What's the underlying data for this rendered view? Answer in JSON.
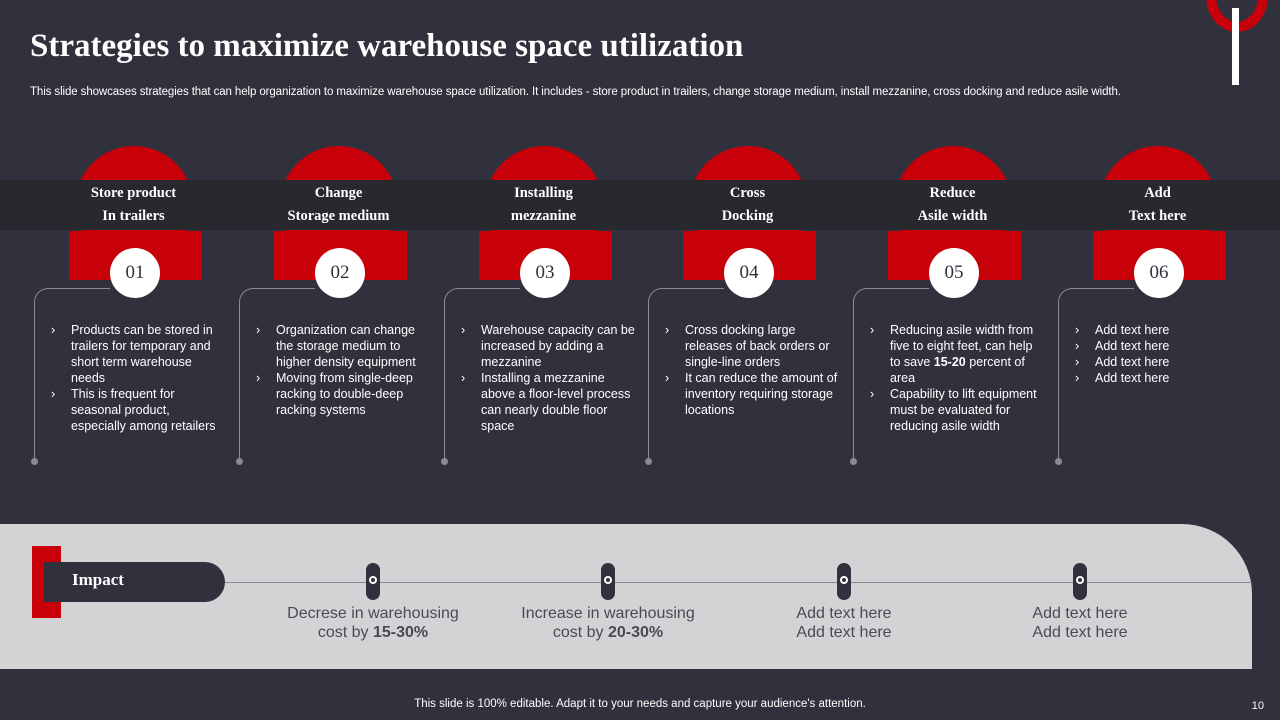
{
  "title": "Strategies to maximize warehouse space utilization",
  "subtitle": "This slide showcases strategies that can help organization to maximize warehouse space utilization. It includes - store product in trailers, change storage medium, install mezzanine, cross docking and reduce asile width.",
  "strategies": [
    {
      "number": "01",
      "heading_line1": "Store product",
      "heading_line2": "In trailers",
      "bullets": [
        "Products can be stored in trailers for temporary and short term warehouse needs",
        "This is frequent for seasonal product, especially among retailers"
      ]
    },
    {
      "number": "02",
      "heading_line1": "Change",
      "heading_line2": "Storage medium",
      "bullets": [
        "Organization can change the storage medium to higher density equipment",
        "Moving from single-deep racking to double-deep racking systems"
      ]
    },
    {
      "number": "03",
      "heading_line1": "Installing",
      "heading_line2": "mezzanine",
      "bullets": [
        "Warehouse capacity can be increased by adding a mezzanine",
        "Installing a mezzanine above a floor-level process can nearly double floor space"
      ]
    },
    {
      "number": "04",
      "heading_line1": "Cross",
      "heading_line2": "Docking",
      "bullets": [
        "Cross docking large releases of back orders or single-line orders",
        "It can reduce the amount of inventory requiring storage locations"
      ]
    },
    {
      "number": "05",
      "heading_line1": "Reduce",
      "heading_line2": "Asile width",
      "bullets": [
        {
          "pre": "Reducing asile width from five to eight feet, can help to save ",
          "bold": "15-20",
          "post": " percent of area"
        },
        "Capability to lift equipment must be evaluated for reducing asile width"
      ]
    },
    {
      "number": "06",
      "heading_line1": "Add",
      "heading_line2": "Text here",
      "bullets": [
        "Add text here",
        "Add text here",
        "Add text here",
        "Add text here"
      ]
    }
  ],
  "impact": {
    "label": "Impact",
    "items": [
      {
        "line1": "Decrese in warehousing",
        "line2_pre": "cost by ",
        "line2_bold": "15-30%"
      },
      {
        "line1": "Increase  in warehousing",
        "line2_pre": "cost by ",
        "line2_bold": "20-30%"
      },
      {
        "line1": "Add text here",
        "line2_pre": "Add text here",
        "line2_bold": ""
      },
      {
        "line1": "Add text here",
        "line2_pre": "Add text here",
        "line2_bold": ""
      }
    ]
  },
  "footer": "This slide is 100% editable. Adapt it to your needs and capture your audience's attention.",
  "page_number": "10",
  "colors": {
    "background": "#31313d",
    "accent_red": "#c8000a",
    "band": "#28282f",
    "impact_panel": "#d3d3d6"
  }
}
